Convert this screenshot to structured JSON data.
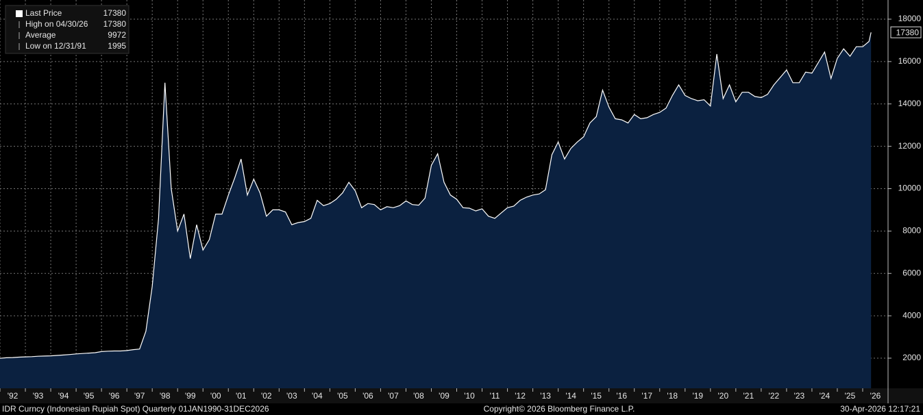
{
  "chart_data": {
    "type": "area",
    "legend": [
      {
        "label": "Last Price",
        "value": 17380
      },
      {
        "label": "High on 04/30/26",
        "value": 17380
      },
      {
        "label": "Average",
        "value": 9972
      },
      {
        "label": "Low on 12/31/91",
        "value": 1995
      }
    ],
    "last_label": 17380,
    "footer_left": "IDR Curncy (Indonesian Rupiah Spot) Quarterly 01JAN1990-31DEC2026",
    "footer_center": "Copyright© 2026 Bloomberg Finance L.P.",
    "footer_right": "30-Apr-2026 12:17:21",
    "series": [
      {
        "name": "Last Price",
        "color": "#ffffff",
        "fill": "#0b2140",
        "x": [
          1992,
          1992.25,
          1992.5,
          1992.75,
          1993,
          1993.25,
          1993.5,
          1993.75,
          1994,
          1994.25,
          1994.5,
          1994.75,
          1995,
          1995.25,
          1995.5,
          1995.75,
          1996,
          1996.25,
          1996.5,
          1996.75,
          1997,
          1997.25,
          1997.5,
          1997.75,
          1998,
          1998.25,
          1998.5,
          1998.75,
          1999,
          1999.25,
          1999.5,
          1999.75,
          2000,
          2000.25,
          2000.5,
          2000.75,
          2001,
          2001.25,
          2001.5,
          2001.75,
          2002,
          2002.25,
          2002.5,
          2002.75,
          2003,
          2003.25,
          2003.5,
          2003.75,
          2004,
          2004.25,
          2004.5,
          2004.75,
          2005,
          2005.25,
          2005.5,
          2005.75,
          2006,
          2006.25,
          2006.5,
          2006.75,
          2007,
          2007.25,
          2007.5,
          2007.75,
          2008,
          2008.25,
          2008.5,
          2008.75,
          2009,
          2009.25,
          2009.5,
          2009.75,
          2010,
          2010.25,
          2010.5,
          2010.75,
          2011,
          2011.25,
          2011.5,
          2011.75,
          2012,
          2012.25,
          2012.5,
          2012.75,
          2013,
          2013.25,
          2013.5,
          2013.75,
          2014,
          2014.25,
          2014.5,
          2014.75,
          2015,
          2015.25,
          2015.5,
          2015.75,
          2016,
          2016.25,
          2016.5,
          2016.75,
          2017,
          2017.25,
          2017.5,
          2017.75,
          2018,
          2018.25,
          2018.5,
          2018.75,
          2019,
          2019.25,
          2019.5,
          2019.75,
          2020,
          2020.25,
          2020.5,
          2020.75,
          2021,
          2021.25,
          2021.5,
          2021.75,
          2022,
          2022.25,
          2022.5,
          2022.75,
          2023,
          2023.25,
          2023.5,
          2023.75,
          2024,
          2024.25,
          2024.5,
          2024.75,
          2025,
          2025.25,
          2025.5,
          2025.75,
          2026,
          2026.25,
          2026.33
        ],
        "values": [
          1995,
          2020,
          2030,
          2050,
          2060,
          2070,
          2090,
          2100,
          2110,
          2130,
          2150,
          2170,
          2200,
          2220,
          2240,
          2260,
          2310,
          2330,
          2340,
          2340,
          2360,
          2400,
          2430,
          3270,
          5400,
          8600,
          15000,
          10000,
          8000,
          8800,
          6700,
          8300,
          7100,
          7600,
          8800,
          8800,
          9700,
          10500,
          11400,
          9700,
          10450,
          9800,
          8700,
          9000,
          9000,
          8900,
          8300,
          8400,
          8450,
          8600,
          9450,
          9200,
          9300,
          9500,
          9800,
          10300,
          9900,
          9100,
          9300,
          9250,
          9000,
          9150,
          9100,
          9200,
          9420,
          9250,
          9220,
          9550,
          11100,
          11650,
          10300,
          9700,
          9500,
          9100,
          9080,
          8950,
          9050,
          8700,
          8600,
          8850,
          9100,
          9180,
          9450,
          9600,
          9700,
          9750,
          9950,
          11600,
          12200,
          11400,
          11900,
          12200,
          12450,
          13100,
          13400,
          14650,
          13850,
          13300,
          13250,
          13100,
          13500,
          13300,
          13350,
          13500,
          13600,
          13800,
          14400,
          14900,
          14400,
          14250,
          14150,
          14200,
          13900,
          16350,
          14250,
          14900,
          14100,
          14550,
          14550,
          14350,
          14300,
          14450,
          14900,
          15250,
          15600,
          15000,
          15000,
          15500,
          15450,
          15950,
          16450,
          15200,
          16150,
          16600,
          16250,
          16700,
          16700,
          16950,
          17380
        ]
      }
    ],
    "xlim": [
      1992,
      2027
    ],
    "xticks": [
      {
        "value": 1992,
        "label": "'92"
      },
      {
        "value": 1993,
        "label": "'93"
      },
      {
        "value": 1994,
        "label": "'94"
      },
      {
        "value": 1995,
        "label": "'95"
      },
      {
        "value": 1996,
        "label": "'96"
      },
      {
        "value": 1997,
        "label": "'97"
      },
      {
        "value": 1998,
        "label": "'98"
      },
      {
        "value": 1999,
        "label": "'99"
      },
      {
        "value": 2000,
        "label": "'00"
      },
      {
        "value": 2001,
        "label": "'01"
      },
      {
        "value": 2002,
        "label": "'02"
      },
      {
        "value": 2003,
        "label": "'03"
      },
      {
        "value": 2004,
        "label": "'04"
      },
      {
        "value": 2005,
        "label": "'05"
      },
      {
        "value": 2006,
        "label": "'06"
      },
      {
        "value": 2007,
        "label": "'07"
      },
      {
        "value": 2008,
        "label": "'08"
      },
      {
        "value": 2009,
        "label": "'09"
      },
      {
        "value": 2010,
        "label": "'10"
      },
      {
        "value": 2011,
        "label": "'11"
      },
      {
        "value": 2012,
        "label": "'12"
      },
      {
        "value": 2013,
        "label": "'13"
      },
      {
        "value": 2014,
        "label": "'14"
      },
      {
        "value": 2015,
        "label": "'15"
      },
      {
        "value": 2016,
        "label": "'16"
      },
      {
        "value": 2017,
        "label": "'17"
      },
      {
        "value": 2018,
        "label": "'18"
      },
      {
        "value": 2019,
        "label": "'19"
      },
      {
        "value": 2020,
        "label": "'20"
      },
      {
        "value": 2021,
        "label": "'21"
      },
      {
        "value": 2022,
        "label": "'22"
      },
      {
        "value": 2023,
        "label": "'23"
      },
      {
        "value": 2024,
        "label": "'24"
      },
      {
        "value": 2025,
        "label": "'25"
      },
      {
        "value": 2026,
        "label": "'26"
      }
    ],
    "ylim": [
      578,
      18905
    ],
    "yticks": [
      2000,
      4000,
      6000,
      8000,
      10000,
      12000,
      14000,
      16000,
      18000
    ],
    "grid": true
  }
}
